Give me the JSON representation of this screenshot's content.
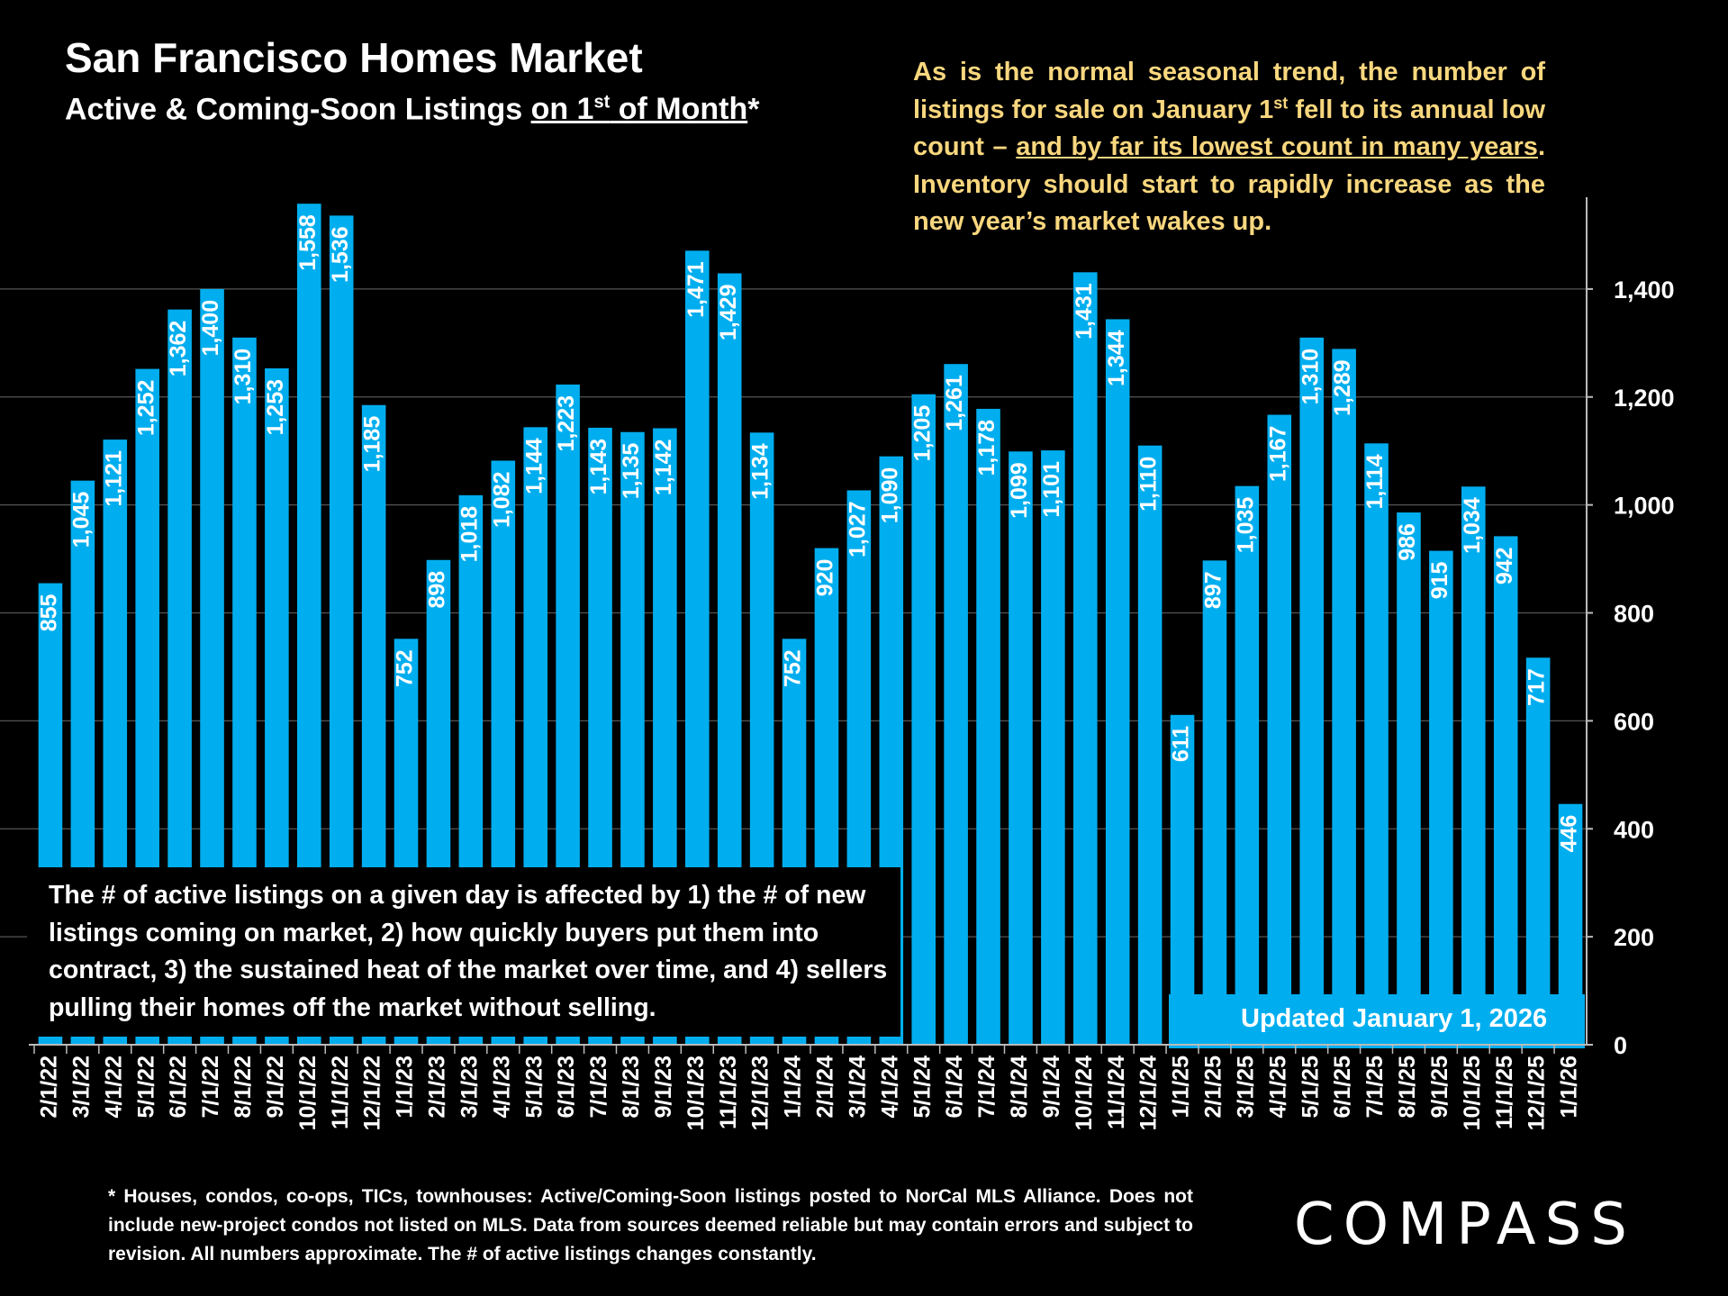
{
  "header": {
    "title": "San Francisco Homes Market",
    "subtitle_prefix": "Active & Coming-Soon Listings ",
    "subtitle_underline_a": "on 1",
    "subtitle_sup": "st",
    "subtitle_underline_b": " of Month",
    "subtitle_suffix": "*"
  },
  "annotations": {
    "top_part1": "As is the normal seasonal trend, the number of listings for sale on January 1",
    "top_sup": "st",
    "top_part2": " fell to its annual low count – ",
    "top_underline": "and by far its lowest count in many years",
    "top_part3": ". Inventory should start to rapidly increase as the new year’s market wakes up.",
    "left": "The # of active listings on a given day is affected by 1) the # of new listings coming on market, 2) how quickly buyers put them into contract, 3) the sustained heat of the market over time, and 4) sellers pulling their homes off the market without selling.",
    "updated": "Updated January 1, 2026"
  },
  "footnote": "* Houses, condos, co-ops, TICs, townhouses: Active/Coming-Soon listings posted to NorCal MLS Alliance. Does not include new-project condos not listed on MLS. Data from sources deemed reliable but may contain errors and subject to revision. All numbers approximate. The # of active listings changes constantly.",
  "logo": "COMPASS",
  "colors": {
    "bar": "#00aeef",
    "background": "#000000",
    "annotation": "#f9d77e",
    "text": "#ffffff"
  },
  "chart_data": {
    "type": "bar",
    "categories": [
      "2/1/22",
      "3/1/22",
      "4/1/22",
      "5/1/22",
      "6/1/22",
      "7/1/22",
      "8/1/22",
      "9/1/22",
      "10/1/22",
      "11/1/22",
      "12/1/22",
      "1/1/23",
      "2/1/23",
      "3/1/23",
      "4/1/23",
      "5/1/23",
      "6/1/23",
      "7/1/23",
      "8/1/23",
      "9/1/23",
      "10/1/23",
      "11/1/23",
      "12/1/23",
      "1/1/24",
      "2/1/24",
      "3/1/24",
      "4/1/24",
      "5/1/24",
      "6/1/24",
      "7/1/24",
      "8/1/24",
      "9/1/24",
      "10/1/24",
      "11/1/24",
      "12/1/24",
      "1/1/25",
      "2/1/25",
      "3/1/25",
      "4/1/25",
      "5/1/25",
      "6/1/25",
      "7/1/25",
      "8/1/25",
      "9/1/25",
      "10/1/25",
      "11/1/25",
      "12/1/25",
      "1/1/26"
    ],
    "values": [
      855,
      1045,
      1121,
      1252,
      1362,
      1400,
      1310,
      1253,
      1558,
      1536,
      1185,
      752,
      898,
      1018,
      1082,
      1144,
      1223,
      1143,
      1135,
      1142,
      1471,
      1429,
      1134,
      752,
      920,
      1027,
      1090,
      1205,
      1261,
      1178,
      1099,
      1101,
      1431,
      1344,
      1110,
      611,
      897,
      1035,
      1167,
      1310,
      1289,
      1114,
      986,
      915,
      1034,
      942,
      717,
      446
    ],
    "value_labels": [
      "855",
      "1,045",
      "1,121",
      "1,252",
      "1,362",
      "1,400",
      "1,310",
      "1,253",
      "1,558",
      "1,536",
      "1,185",
      "752",
      "898",
      "1,018",
      "1,082",
      "1,144",
      "1,223",
      "1,143",
      "1,135",
      "1,142",
      "1,471",
      "1,429",
      "1,134",
      "752",
      "920",
      "1,027",
      "1,090",
      "1,205",
      "1,261",
      "1,178",
      "1,099",
      "1,101",
      "1,431",
      "1,344",
      "1,110",
      "611",
      "897",
      "1,035",
      "1,167",
      "1,310",
      "1,289",
      "1,114",
      "986",
      "915",
      "1,034",
      "942",
      "717",
      "446"
    ],
    "y_ticks": [
      0,
      200,
      400,
      600,
      800,
      1000,
      1200,
      1400
    ],
    "y_tick_labels": [
      "0",
      "200",
      "400",
      "600",
      "800",
      "1,000",
      "1,200",
      "1,400"
    ],
    "ylim": [
      0,
      1570
    ],
    "y_axis_side": "right",
    "grid": true
  }
}
